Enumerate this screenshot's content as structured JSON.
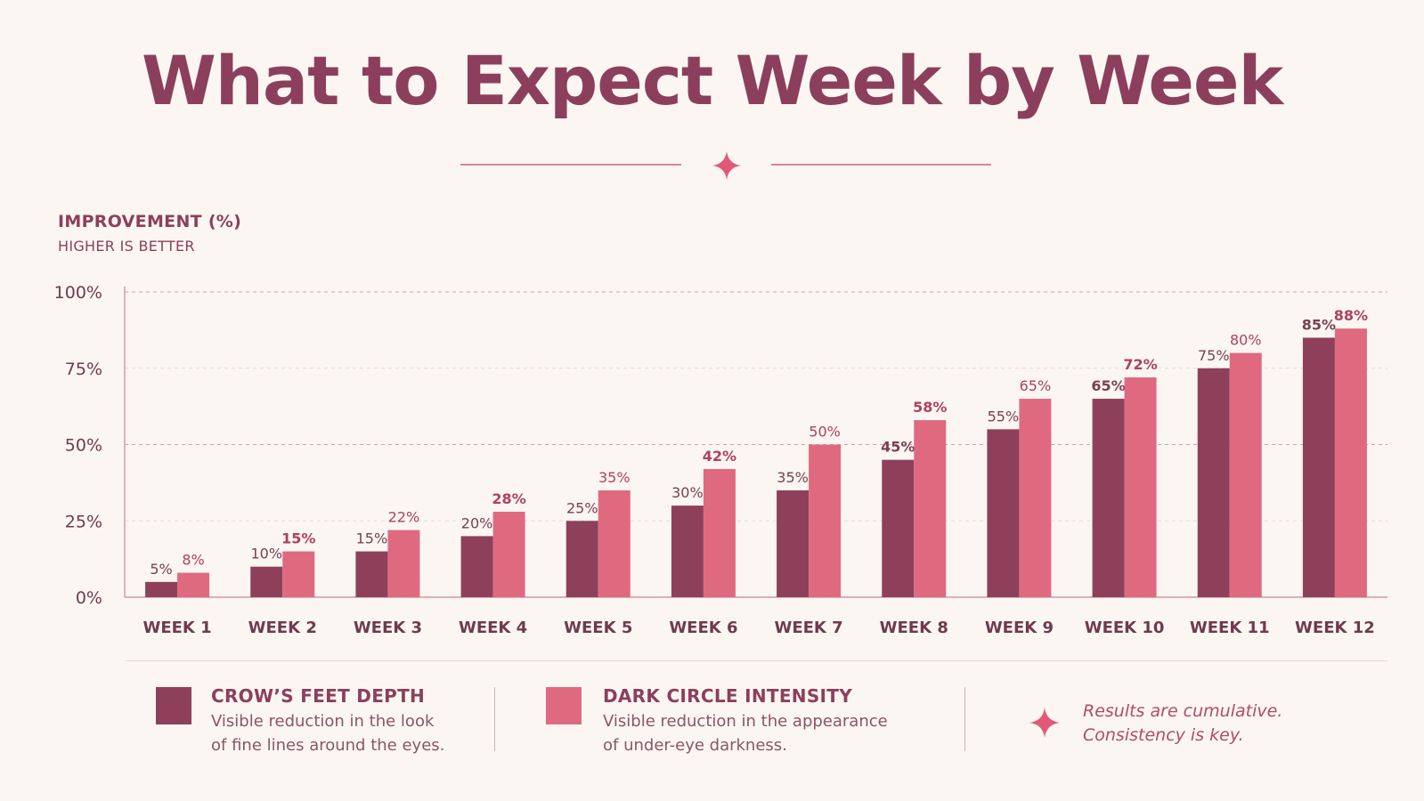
{
  "title": "What to Expect Week by Week",
  "colors": {
    "background": "#fbf6f2",
    "crows_feet": "#8e405a",
    "dark_circle": "#df6a80",
    "accent": "#e05a78"
  },
  "chart_data": {
    "type": "bar",
    "ylabel": "IMPROVEMENT (%)",
    "ysublabel": "HIGHER IS BETTER",
    "ylim": [
      0,
      100
    ],
    "yticks": [
      0,
      25,
      50,
      75,
      100
    ],
    "ytick_labels": [
      "0%",
      "25%",
      "50%",
      "75%",
      "100%"
    ],
    "grid": "horizontal dashed",
    "categories": [
      "WEEK 1",
      "WEEK 2",
      "WEEK 3",
      "WEEK 4",
      "WEEK 5",
      "WEEK 6",
      "WEEK 7",
      "WEEK 8",
      "WEEK 9",
      "WEEK 10",
      "WEEK 11",
      "WEEK 12"
    ],
    "series": [
      {
        "name": "CROW’S FEET DEPTH",
        "values": [
          5,
          10,
          15,
          20,
          25,
          30,
          35,
          45,
          55,
          65,
          75,
          85
        ],
        "labels": [
          "5%",
          "10%",
          "15%",
          "20%",
          "25%",
          "30%",
          "35%",
          "45%",
          "55%",
          "65%",
          "75%",
          "85%"
        ]
      },
      {
        "name": "DARK CIRCLE INTENSITY",
        "values": [
          8,
          15,
          22,
          28,
          35,
          42,
          50,
          58,
          65,
          72,
          80,
          88
        ],
        "labels": [
          "8%",
          "15%",
          "22%",
          "28%",
          "35%",
          "42%",
          "50%",
          "58%",
          "65%",
          "72%",
          "80%",
          "88%"
        ]
      }
    ]
  },
  "legend": {
    "crows_feet": {
      "title": "CROW’S FEET DEPTH",
      "desc_line1": "Visible reduction in the look",
      "desc_line2": "of fine lines around the eyes."
    },
    "dark_circle": {
      "title": "DARK CIRCLE INTENSITY",
      "desc_line1": "Visible reduction in the appearance",
      "desc_line2": "of under-eye darkness."
    },
    "note": {
      "line1": "Results are cumulative.",
      "line2": "Consistency is key."
    }
  }
}
